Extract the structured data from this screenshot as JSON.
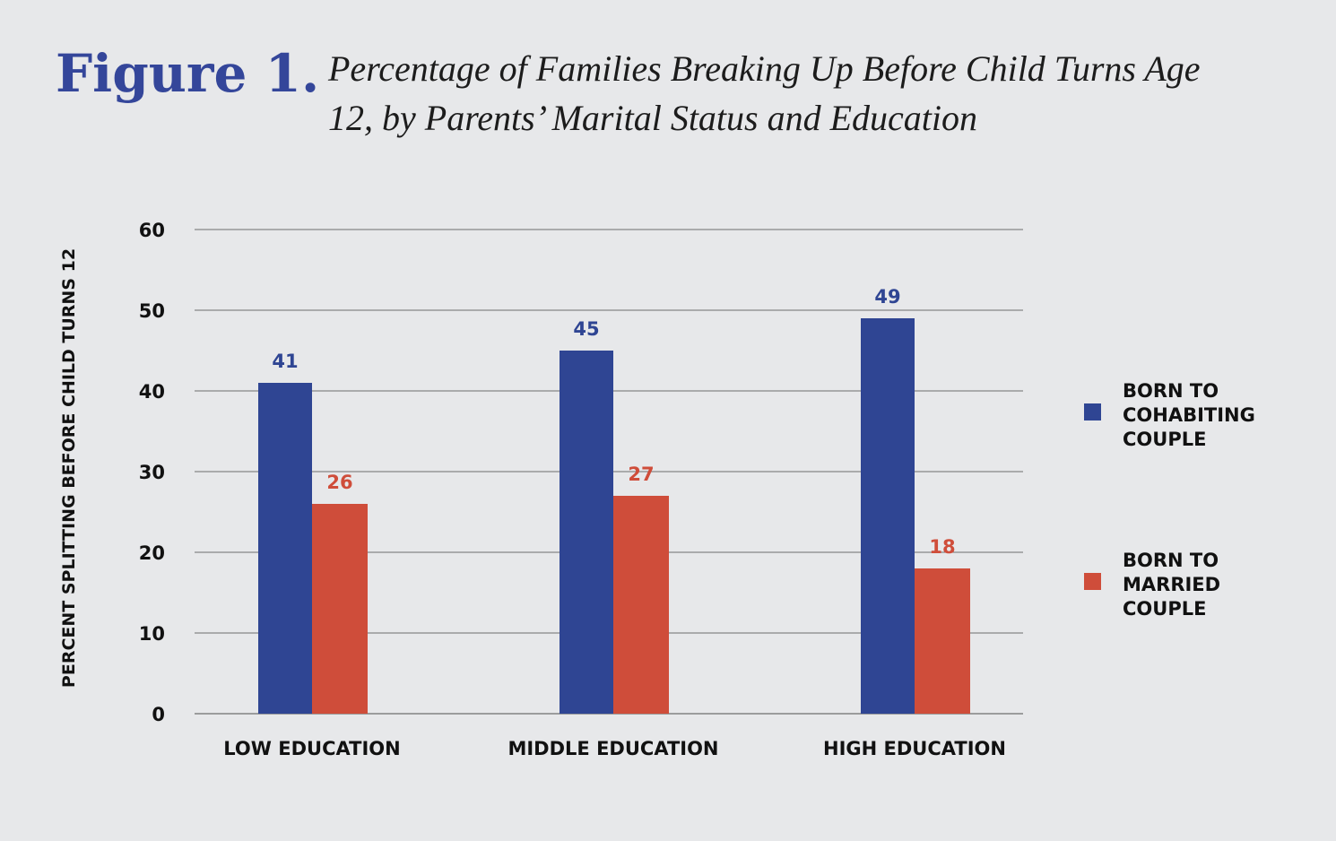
{
  "colors": {
    "background": "#e7e8ea",
    "figure_label": "#34469a",
    "title_text": "#1c1c1c",
    "cohabiting": "#2f4593",
    "married": "#cf4d3a",
    "grid": "#6e6e6e",
    "axis_text": "#111111"
  },
  "header": {
    "figure_label": "Figure 1.",
    "title_lines": [
      "Percentage of Families Breaking Up Before Child Turns Age",
      "12, by Parents’ Marital Status and Education"
    ]
  },
  "chart_data": {
    "type": "bar",
    "title": "Percentage of Families Breaking Up Before Child Turns Age 12, by Parents’ Marital Status and Education",
    "xlabel": "",
    "ylabel": "PERCENT SPLITTING BEFORE CHILD TURNS 12",
    "categories": [
      "LOW EDUCATION",
      "MIDDLE EDUCATION",
      "HIGH EDUCATION"
    ],
    "series": [
      {
        "name": "BORN TO COHABITING COUPLE",
        "legend_lines": [
          "BORN TO",
          "COHABITING",
          "COUPLE"
        ],
        "values": [
          41,
          45,
          49
        ],
        "color": "#2f4593"
      },
      {
        "name": "BORN TO MARRIED COUPLE",
        "legend_lines": [
          "BORN TO",
          "MARRIED",
          "COUPLE"
        ],
        "values": [
          26,
          27,
          18
        ],
        "color": "#cf4d3a"
      }
    ],
    "ylim": [
      0,
      60
    ],
    "yticks": [
      0,
      10,
      20,
      30,
      40,
      50,
      60
    ],
    "grid": true,
    "legend_position": "right"
  }
}
